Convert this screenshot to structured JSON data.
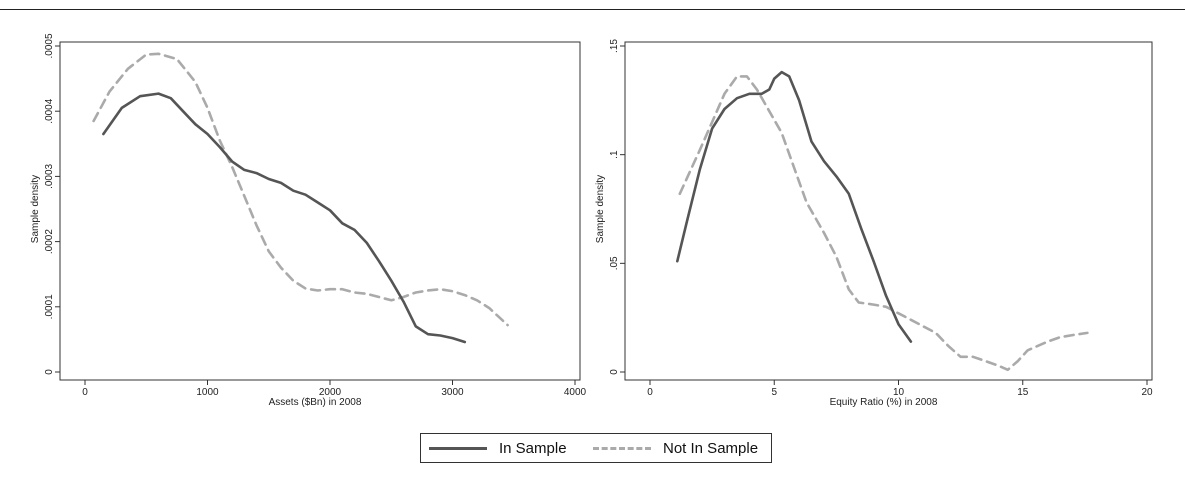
{
  "colors": {
    "in_sample": "#555555",
    "not_in_sample": "#aaaaaa"
  },
  "legend": {
    "in_sample_label": "In Sample",
    "not_in_sample_label": "Not In Sample",
    "placement": "bottom-center"
  },
  "chart_data": [
    {
      "type": "line",
      "xlabel": "Assets ($Bn) in 2008",
      "ylabel": "Sample density",
      "xlim": [
        0,
        4000
      ],
      "ylim": [
        0,
        0.0005
      ],
      "xticks": [
        0,
        1000,
        2000,
        3000,
        4000
      ],
      "xtick_labels": [
        "0",
        "1000",
        "2000",
        "3000",
        "4000"
      ],
      "yticks": [
        0,
        0.0001,
        0.0002,
        0.0003,
        0.0004,
        0.0005
      ],
      "ytick_labels": [
        "0",
        ".0001",
        ".0002",
        ".0003",
        ".0004",
        ".0005"
      ],
      "grid": false,
      "series": [
        {
          "name": "In Sample",
          "style": "solid",
          "x": [
            150,
            300,
            450,
            600,
            700,
            800,
            900,
            1000,
            1100,
            1200,
            1300,
            1400,
            1500,
            1600,
            1700,
            1800,
            1900,
            2000,
            2100,
            2200,
            2300,
            2400,
            2500,
            2600,
            2700,
            2800,
            2900,
            3000,
            3100
          ],
          "y": [
            0.000365,
            0.000405,
            0.000423,
            0.000427,
            0.00042,
            0.0004,
            0.00038,
            0.000365,
            0.000345,
            0.000323,
            0.00031,
            0.000305,
            0.000296,
            0.00029,
            0.000278,
            0.000272,
            0.00026,
            0.000248,
            0.000228,
            0.000218,
            0.000198,
            0.00017,
            0.00014,
            0.000108,
            7e-05,
            5.8e-05,
            5.6e-05,
            5.2e-05,
            4.6e-05
          ]
        },
        {
          "name": "Not In Sample",
          "style": "dashed",
          "x": [
            70,
            200,
            350,
            500,
            600,
            750,
            900,
            1000,
            1100,
            1200,
            1300,
            1400,
            1500,
            1600,
            1700,
            1800,
            1900,
            2000,
            2100,
            2200,
            2300,
            2400,
            2500,
            2600,
            2700,
            2800,
            2900,
            3000,
            3100,
            3200,
            3300,
            3450
          ],
          "y": [
            0.000385,
            0.00043,
            0.000465,
            0.000487,
            0.000488,
            0.00048,
            0.000445,
            0.000405,
            0.000355,
            0.000315,
            0.00027,
            0.000225,
            0.000185,
            0.00016,
            0.00014,
            0.000128,
            0.000125,
            0.000127,
            0.000127,
            0.000122,
            0.00012,
            0.000115,
            0.00011,
            0.000115,
            0.000122,
            0.000125,
            0.000127,
            0.000124,
            0.000118,
            0.00011,
            9.8e-05,
            7.2e-05
          ]
        }
      ]
    },
    {
      "type": "line",
      "xlabel": "Equity Ratio (%) in 2008",
      "ylabel": "Sample density",
      "xlim": [
        0,
        20
      ],
      "ylim": [
        0,
        0.15
      ],
      "xticks": [
        0,
        5,
        10,
        15,
        20
      ],
      "xtick_labels": [
        "0",
        "5",
        "10",
        "15",
        "20"
      ],
      "yticks": [
        0,
        0.05,
        0.1,
        0.15
      ],
      "ytick_labels": [
        "0",
        ".05",
        ".1",
        ".15"
      ],
      "grid": false,
      "series": [
        {
          "name": "In Sample",
          "style": "solid",
          "x": [
            1.1,
            1.5,
            2.0,
            2.5,
            3.0,
            3.5,
            4.0,
            4.5,
            4.8,
            5.0,
            5.3,
            5.6,
            6.0,
            6.5,
            7.0,
            7.5,
            8.0,
            8.5,
            9.0,
            9.5,
            10.0,
            10.5
          ],
          "y": [
            0.051,
            0.07,
            0.093,
            0.112,
            0.121,
            0.126,
            0.128,
            0.128,
            0.13,
            0.135,
            0.138,
            0.136,
            0.125,
            0.106,
            0.097,
            0.09,
            0.082,
            0.066,
            0.051,
            0.035,
            0.022,
            0.014
          ]
        },
        {
          "name": "Not In Sample",
          "style": "dashed",
          "x": [
            1.2,
            2.0,
            2.5,
            3.0,
            3.5,
            3.9,
            4.3,
            4.8,
            5.3,
            5.8,
            6.3,
            7.0,
            7.5,
            8.0,
            8.4,
            9.0,
            9.5,
            10.0,
            10.5,
            11.0,
            11.5,
            12.0,
            12.5,
            13.0,
            13.5,
            14.0,
            14.4,
            14.8,
            15.2,
            16.0,
            16.5,
            17.0,
            17.6
          ],
          "y": [
            0.082,
            0.102,
            0.115,
            0.128,
            0.136,
            0.136,
            0.13,
            0.12,
            0.11,
            0.094,
            0.078,
            0.064,
            0.053,
            0.038,
            0.032,
            0.031,
            0.03,
            0.027,
            0.024,
            0.021,
            0.018,
            0.012,
            0.007,
            0.007,
            0.005,
            0.003,
            0.001,
            0.005,
            0.01,
            0.014,
            0.016,
            0.017,
            0.018
          ]
        }
      ]
    }
  ]
}
